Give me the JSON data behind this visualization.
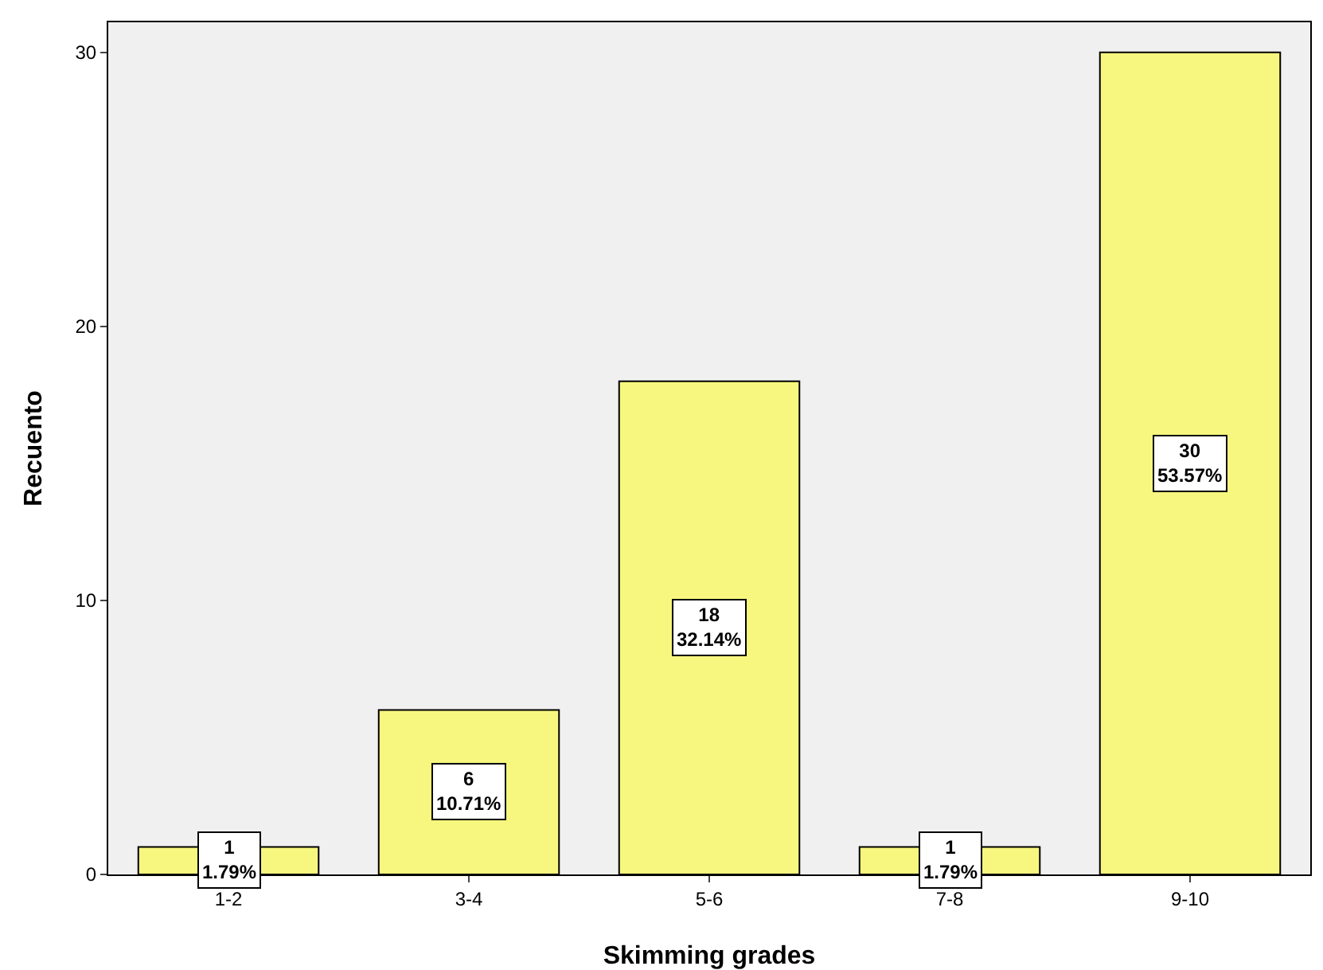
{
  "chart_data": {
    "type": "bar",
    "xlabel": "Skimming grades",
    "ylabel": "Recuento",
    "categories": [
      "1-2",
      "3-4",
      "5-6",
      "7-8",
      "9-10"
    ],
    "values": [
      1,
      6,
      18,
      1,
      30
    ],
    "value_labels": [
      "1\n1.79%",
      "6\n10.71%",
      "18\n32.14%",
      "1\n1.79%",
      "30\n53.57%"
    ],
    "color": "#f7f77f",
    "ylim": [
      0,
      31.1
    ],
    "yticks": [
      0,
      10,
      20,
      30
    ],
    "grid": false,
    "legend": false
  }
}
